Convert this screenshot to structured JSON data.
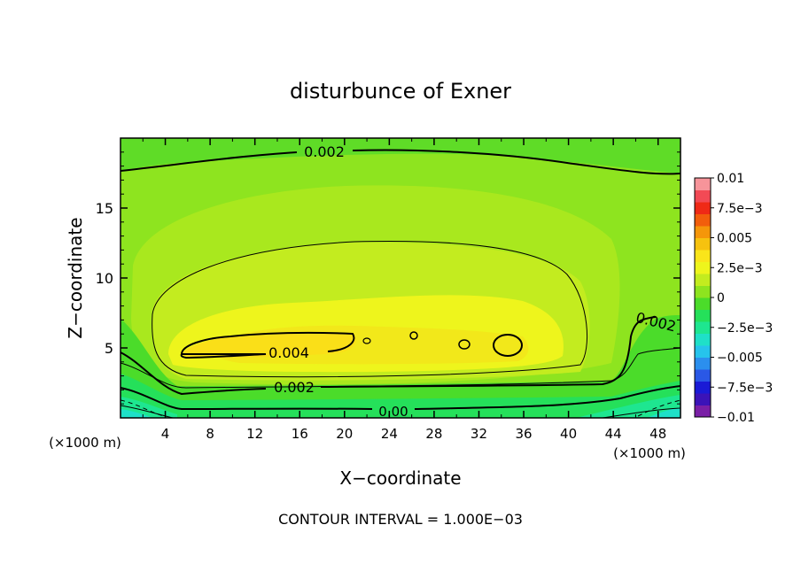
{
  "chart_data": {
    "type": "heatmap",
    "title": "disturbunce of Exner",
    "xlabel": "X−coordinate",
    "ylabel": "Z−coordinate",
    "x_unit_left": "(×1000 m)",
    "x_unit_right": "(×1000 m)",
    "footer": "CONTOUR INTERVAL = 1.000E−03",
    "xlim": [
      0,
      50
    ],
    "ylim": [
      0,
      20
    ],
    "xticks": [
      4,
      8,
      12,
      16,
      20,
      24,
      28,
      32,
      36,
      40,
      44,
      48
    ],
    "xtick_labels": [
      "4",
      "8",
      "12",
      "16",
      "20",
      "24",
      "28",
      "32",
      "36",
      "40",
      "44",
      "48"
    ],
    "yticks": [
      5,
      10,
      15
    ],
    "ytick_labels": [
      "5",
      "10",
      "15"
    ],
    "grid": false,
    "legend": "right colorbar",
    "colorbar": {
      "range": [
        -0.01,
        0.01
      ],
      "labels": [
        {
          "value": 0.01,
          "text": "0.01"
        },
        {
          "value": 0.0075,
          "text": "7.5e−3"
        },
        {
          "value": 0.005,
          "text": "0.005"
        },
        {
          "value": 0.0025,
          "text": "2.5e−3"
        },
        {
          "value": 0,
          "text": "0"
        },
        {
          "value": -0.0025,
          "text": "−2.5e−3"
        },
        {
          "value": -0.005,
          "text": "−0.005"
        },
        {
          "value": -0.0075,
          "text": "−7.5e−3"
        },
        {
          "value": -0.01,
          "text": "−0.01"
        }
      ],
      "colors": [
        "#7a1fa6",
        "#3b13b8",
        "#1a1ad6",
        "#2a58e6",
        "#2b8fee",
        "#26c3ec",
        "#1fe0c8",
        "#1ee690",
        "#25e05a",
        "#4bdc2a",
        "#8ee41f",
        "#c3ec1f",
        "#eef51c",
        "#fae51a",
        "#f6c20f",
        "#f5960a",
        "#f25e0c",
        "#ef2a16",
        "#f24a55",
        "#f7949a"
      ]
    },
    "contour_labels": [
      {
        "text": "0.002",
        "x": 19.0,
        "z": 19.0
      },
      {
        "text": "0.004",
        "x": 15.0,
        "z": 4.8
      },
      {
        "text": "0.002",
        "x": 15.5,
        "z": 2.2
      },
      {
        "text": "0.00",
        "x": 24.5,
        "z": 0.45
      },
      {
        "text": "0.002",
        "x": 46.5,
        "z": 6.8
      }
    ]
  }
}
